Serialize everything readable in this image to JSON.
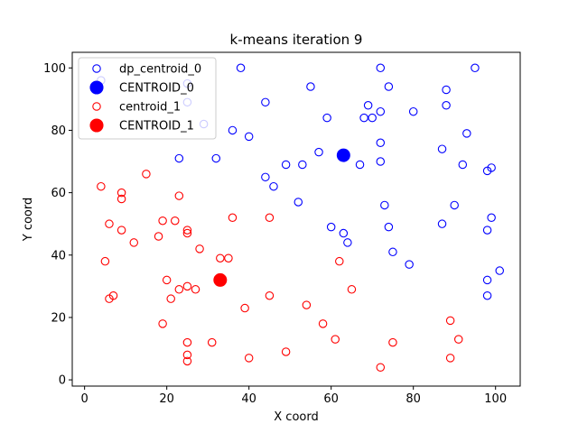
{
  "chart_data": {
    "type": "scatter",
    "title": "k-means iteration 9",
    "xlabel": "X coord",
    "ylabel": "Y coord",
    "xlim": [
      -3,
      106
    ],
    "ylim": [
      -2,
      105
    ],
    "xticks": [
      0,
      20,
      40,
      60,
      80,
      100
    ],
    "yticks": [
      0,
      20,
      40,
      60,
      80,
      100
    ],
    "grid": false,
    "legend_position": "top-left",
    "series": [
      {
        "name": "dp_centroid_0",
        "marker": "hollow-circle",
        "color": "#0000ff",
        "points": [
          [
            4,
            96
          ],
          [
            25,
            95
          ],
          [
            38,
            100
          ],
          [
            55,
            94
          ],
          [
            72,
            100
          ],
          [
            95,
            100
          ],
          [
            74,
            94
          ],
          [
            88,
            93
          ],
          [
            44,
            89
          ],
          [
            69,
            88
          ],
          [
            72,
            86
          ],
          [
            80,
            86
          ],
          [
            88,
            88
          ],
          [
            59,
            84
          ],
          [
            68,
            84
          ],
          [
            70,
            84
          ],
          [
            29,
            82
          ],
          [
            36,
            80
          ],
          [
            40,
            78
          ],
          [
            93,
            79
          ],
          [
            72,
            76
          ],
          [
            87,
            74
          ],
          [
            57,
            73
          ],
          [
            23,
            71
          ],
          [
            32,
            71
          ],
          [
            72,
            70
          ],
          [
            49,
            69
          ],
          [
            53,
            69
          ],
          [
            67,
            69
          ],
          [
            92,
            69
          ],
          [
            98,
            67
          ],
          [
            99,
            68
          ],
          [
            44,
            65
          ],
          [
            46,
            62
          ],
          [
            52,
            57
          ],
          [
            73,
            56
          ],
          [
            90,
            56
          ],
          [
            99,
            52
          ],
          [
            87,
            50
          ],
          [
            60,
            49
          ],
          [
            74,
            49
          ],
          [
            98,
            48
          ],
          [
            63,
            47
          ],
          [
            64,
            44
          ],
          [
            75,
            41
          ],
          [
            79,
            37
          ],
          [
            101,
            35
          ],
          [
            98,
            32
          ],
          [
            98,
            27
          ],
          [
            25,
            89
          ]
        ]
      },
      {
        "name": "CENTROID_0",
        "marker": "filled-circle",
        "color": "#0000ff",
        "points": [
          [
            63,
            72
          ]
        ]
      },
      {
        "name": "centroid_1",
        "marker": "hollow-circle",
        "color": "#ff0000",
        "points": [
          [
            15,
            66
          ],
          [
            4,
            62
          ],
          [
            9,
            60
          ],
          [
            9,
            58
          ],
          [
            23,
            59
          ],
          [
            36,
            52
          ],
          [
            45,
            52
          ],
          [
            6,
            50
          ],
          [
            19,
            51
          ],
          [
            22,
            51
          ],
          [
            9,
            48
          ],
          [
            25,
            48
          ],
          [
            25,
            47
          ],
          [
            18,
            46
          ],
          [
            12,
            44
          ],
          [
            28,
            42
          ],
          [
            5,
            38
          ],
          [
            33,
            39
          ],
          [
            35,
            39
          ],
          [
            62,
            38
          ],
          [
            20,
            32
          ],
          [
            23,
            29
          ],
          [
            25,
            30
          ],
          [
            27,
            29
          ],
          [
            65,
            29
          ],
          [
            7,
            27
          ],
          [
            6,
            26
          ],
          [
            21,
            26
          ],
          [
            45,
            27
          ],
          [
            54,
            24
          ],
          [
            39,
            23
          ],
          [
            19,
            18
          ],
          [
            58,
            18
          ],
          [
            89,
            19
          ],
          [
            61,
            13
          ],
          [
            91,
            13
          ],
          [
            25,
            12
          ],
          [
            31,
            12
          ],
          [
            75,
            12
          ],
          [
            49,
            9
          ],
          [
            25,
            8
          ],
          [
            25,
            6
          ],
          [
            40,
            7
          ],
          [
            89,
            7
          ],
          [
            72,
            4
          ]
        ]
      },
      {
        "name": "CENTROID_1",
        "marker": "filled-circle",
        "color": "#ff0000",
        "points": [
          [
            33,
            32
          ]
        ]
      }
    ]
  }
}
